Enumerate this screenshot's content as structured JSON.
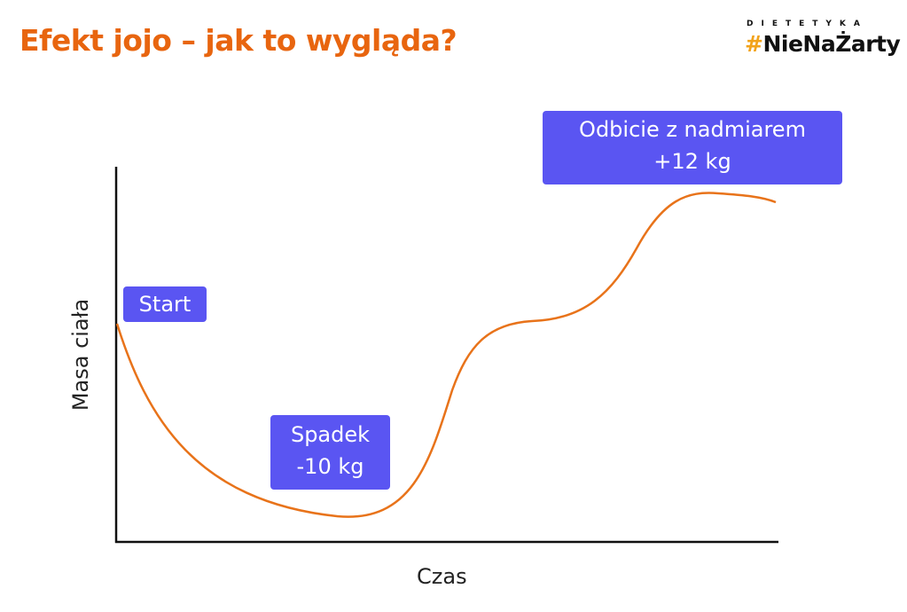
{
  "title": "Efekt jojo – jak to wygląda?",
  "logo": {
    "top": "DIETETYKA",
    "hash": "#",
    "name": "NieNaŻarty"
  },
  "axes": {
    "x_label": "Czas",
    "y_label": "Masa ciała"
  },
  "annotations": {
    "start": "Start",
    "drop_title": "Spadek",
    "drop_value": "-10 kg",
    "rebound_title": "Odbicie z nadmiarem",
    "rebound_value": "+12 kg"
  },
  "colors": {
    "title": "#e8650f",
    "curve": "#e8731a",
    "label_bg": "#5a55f2",
    "logo_hash": "#f2a31b"
  }
}
